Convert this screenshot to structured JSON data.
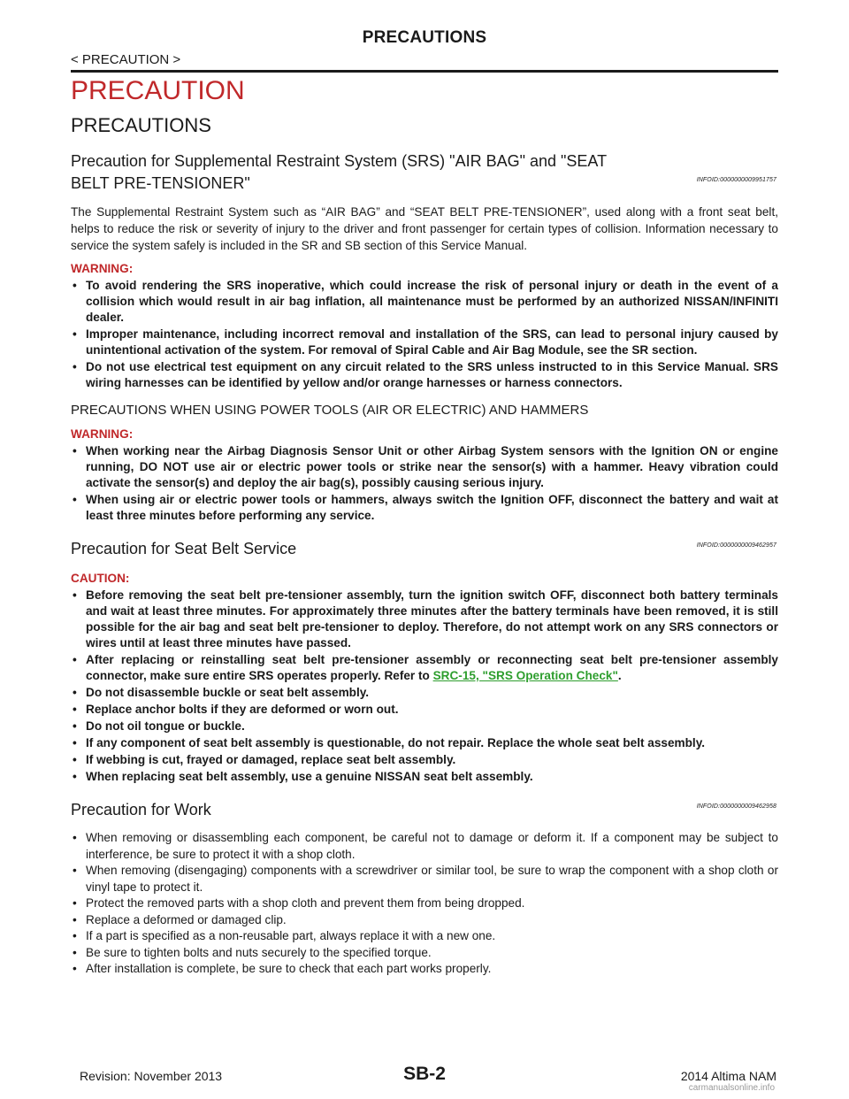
{
  "header": {
    "running_title": "PRECAUTIONS",
    "breadcrumb": "< PRECAUTION >"
  },
  "main_title": "PRECAUTION",
  "sub_title": "PRECAUTIONS",
  "sections": {
    "srs": {
      "title": "Precaution for Supplemental Restraint System (SRS) \"AIR BAG\" and \"SEAT BELT PRE-TENSIONER\"",
      "infoid": "INFOID:0000000009951757",
      "intro": "The Supplemental Restraint System such as “AIR BAG” and “SEAT BELT PRE-TENSIONER”, used along with a front seat belt, helps to reduce the risk or severity of injury to the driver and front passenger for certain types of collision. Information necessary to service the system safely is included in the SR and SB section of this Service Manual.",
      "warning_label": "WARNING:",
      "warnings": [
        "To avoid rendering the SRS inoperative, which could increase the risk of personal injury or death in the event of a collision which would result in air bag inflation, all maintenance must be performed by an authorized NISSAN/INFINITI dealer.",
        "Improper maintenance, including incorrect removal and installation of the SRS, can lead to personal injury caused by unintentional activation of the system. For removal of Spiral Cable and Air Bag Module, see the SR section.",
        "Do not use electrical test equipment on any circuit related to the SRS unless instructed to in this Service Manual. SRS wiring harnesses can be identified by yellow and/or orange harnesses or harness connectors."
      ],
      "power_tools_heading": "PRECAUTIONS WHEN USING POWER TOOLS (AIR OR ELECTRIC) AND HAMMERS",
      "warning_label_2": "WARNING:",
      "warnings_2": [
        "When working near the Airbag Diagnosis Sensor Unit or other Airbag System sensors with the Ignition ON or engine running, DO NOT use air or electric power tools or strike near the sensor(s) with a hammer. Heavy vibration could activate the sensor(s) and deploy the air bag(s), possibly causing serious injury.",
        "When using air or electric power tools or hammers, always switch the Ignition OFF, disconnect the battery and wait at least three minutes before performing any service."
      ]
    },
    "seat_belt": {
      "title": "Precaution for Seat Belt Service",
      "infoid": "INFOID:0000000009462957",
      "caution_label": "CAUTION:",
      "cautions": [
        "Before removing the seat belt pre-tensioner assembly, turn the ignition switch OFF, disconnect both battery terminals and wait at least three minutes. For approximately three minutes after the battery terminals have been removed, it is still possible for the air bag and seat belt pre-tensioner to deploy. Therefore, do not attempt work on any SRS connectors or wires until at least three minutes have passed."
      ],
      "caution_link_pre": "After replacing or reinstalling seat belt pre-tensioner assembly or reconnecting seat belt pre-tensioner assembly connector, make sure entire SRS operates properly. Refer to ",
      "caution_link": "SRC-15, \"SRS Operation Check\"",
      "caution_link_post": ".",
      "cautions_after": [
        "Do not disassemble buckle or seat belt assembly.",
        "Replace anchor bolts if they are deformed or worn out.",
        "Do not oil tongue or buckle.",
        "If any component of seat belt assembly is questionable, do not repair. Replace the whole seat belt assembly.",
        "If webbing is cut, frayed or damaged, replace seat belt assembly.",
        "When replacing seat belt assembly, use a genuine NISSAN seat belt assembly."
      ]
    },
    "work": {
      "title": "Precaution for Work",
      "infoid": "INFOID:0000000009462958",
      "items": [
        "When removing or disassembling each component, be careful not to damage or deform it. If a component may be subject to interference, be sure to protect it with a shop cloth.",
        "When removing (disengaging) components with a screwdriver or similar tool, be sure to wrap the component with a shop cloth or vinyl tape to protect it.",
        "Protect the removed parts with a shop cloth and prevent them from being dropped.",
        "Replace a deformed or damaged clip.",
        "If a part is specified as a non-reusable part, always replace it with a new one.",
        "Be sure to tighten bolts and nuts securely to the specified torque.",
        "After installation is complete, be sure to check that each part works properly."
      ]
    }
  },
  "footer": {
    "revision": "Revision: November 2013",
    "page_number": "SB-2",
    "model": "2014 Altima NAM",
    "watermark": "carmanualsonline.info"
  },
  "colors": {
    "accent_red": "#c0282a",
    "link_green": "#2e9e2e"
  }
}
